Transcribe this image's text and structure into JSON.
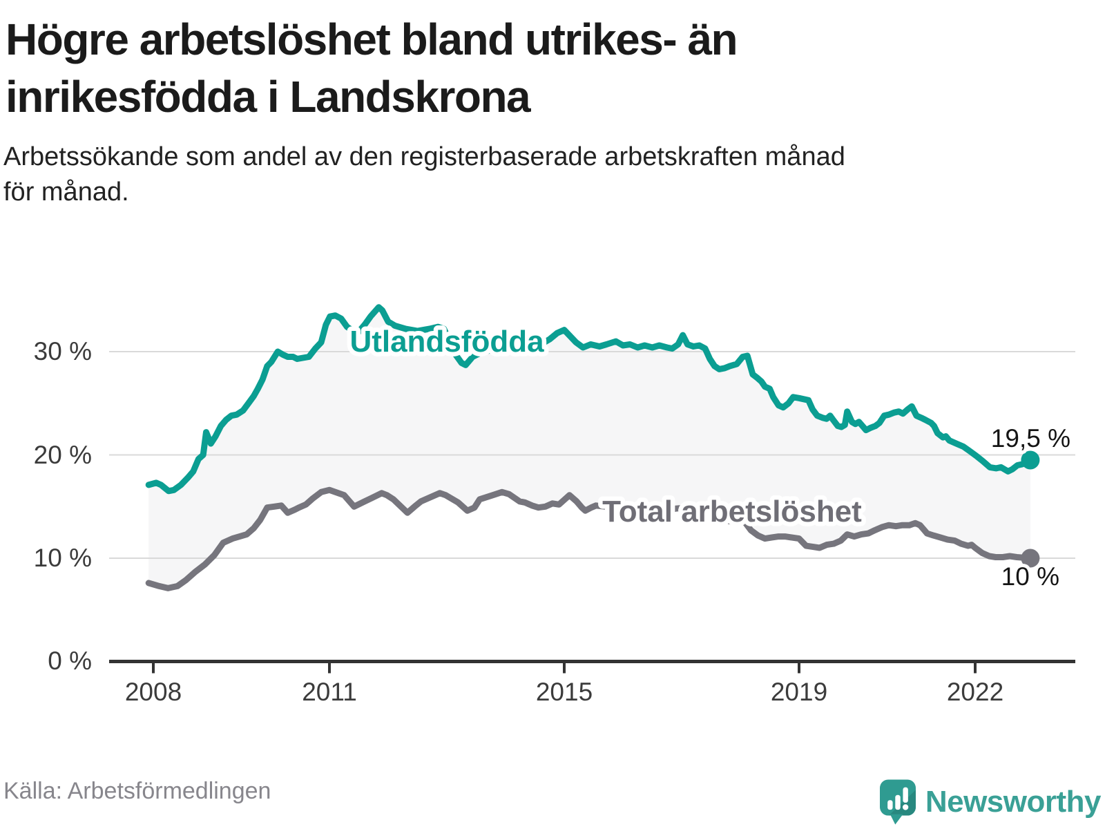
{
  "title": {
    "line1": "Högre arbetslöshet bland utrikes- än",
    "line2": "inrikesfödda i Landskrona"
  },
  "subtitle": {
    "line1": "Arbetssökande som andel av den registerbaserade arbetskraften månad",
    "line2": "för månad."
  },
  "footer": {
    "source": "Källa: Arbetsförmedlingen",
    "brand": "Newsworthy"
  },
  "colors": {
    "teal": "#0b9e92",
    "gray_line": "#76757d",
    "area_fill": "#f6f6f7",
    "gridline": "#d9d9d9",
    "axis": "#333333",
    "brand_teal": "#2f9b91"
  },
  "chart_data": {
    "type": "line",
    "title": "Högre arbetslöshet bland utrikes- än inrikesfödda i Landskrona",
    "xlabel": "",
    "ylabel": "Arbetssökande som andel av den registerbaserade arbetskraften",
    "unit": "%",
    "grid": "horizontal",
    "xlim": [
      2007.25,
      2023.7
    ],
    "ylim": [
      0,
      36
    ],
    "x_ticks": [
      {
        "value": 2008,
        "label": "2008"
      },
      {
        "value": 2011,
        "label": "2011"
      },
      {
        "value": 2015,
        "label": "2015"
      },
      {
        "value": 2019,
        "label": "2019"
      },
      {
        "value": 2022,
        "label": "2022"
      }
    ],
    "y_ticks": [
      {
        "value": 0,
        "label": "0 %"
      },
      {
        "value": 10,
        "label": "10 %"
      },
      {
        "value": 20,
        "label": "20 %"
      },
      {
        "value": 30,
        "label": "30 %"
      }
    ],
    "area_fill_between_series": true,
    "series": [
      {
        "name": "Utlandsfödda",
        "slug": "utlandsfodda",
        "color": "#0b9e92",
        "end_label": "19,5 %",
        "end_value": 19.5,
        "points": [
          [
            2007.92,
            17.1
          ],
          [
            2008.05,
            17.3
          ],
          [
            2008.13,
            17.1
          ],
          [
            2008.26,
            16.5
          ],
          [
            2008.35,
            16.6
          ],
          [
            2008.47,
            17.1
          ],
          [
            2008.59,
            17.8
          ],
          [
            2008.68,
            18.4
          ],
          [
            2008.77,
            19.6
          ],
          [
            2008.85,
            20.0
          ],
          [
            2008.9,
            22.2
          ],
          [
            2008.98,
            21.1
          ],
          [
            2009.06,
            21.8
          ],
          [
            2009.15,
            22.8
          ],
          [
            2009.24,
            23.4
          ],
          [
            2009.33,
            23.8
          ],
          [
            2009.42,
            23.9
          ],
          [
            2009.53,
            24.3
          ],
          [
            2009.62,
            25.0
          ],
          [
            2009.71,
            25.7
          ],
          [
            2009.78,
            26.4
          ],
          [
            2009.86,
            27.3
          ],
          [
            2009.94,
            28.6
          ],
          [
            2010.01,
            29.0
          ],
          [
            2010.12,
            30.0
          ],
          [
            2010.21,
            29.7
          ],
          [
            2010.29,
            29.5
          ],
          [
            2010.38,
            29.5
          ],
          [
            2010.45,
            29.3
          ],
          [
            2010.55,
            29.4
          ],
          [
            2010.65,
            29.5
          ],
          [
            2010.76,
            30.3
          ],
          [
            2010.86,
            30.9
          ],
          [
            2010.94,
            32.6
          ],
          [
            2011.01,
            33.4
          ],
          [
            2011.1,
            33.5
          ],
          [
            2011.2,
            33.2
          ],
          [
            2011.3,
            32.4
          ],
          [
            2011.38,
            32.1
          ],
          [
            2011.48,
            31.8
          ],
          [
            2011.6,
            32.6
          ],
          [
            2011.7,
            33.4
          ],
          [
            2011.84,
            34.3
          ],
          [
            2011.9,
            34.0
          ],
          [
            2012.0,
            32.9
          ],
          [
            2012.12,
            32.5
          ],
          [
            2012.3,
            32.2
          ],
          [
            2012.5,
            32.0
          ],
          [
            2012.7,
            32.2
          ],
          [
            2012.85,
            32.4
          ],
          [
            2012.95,
            32.2
          ],
          [
            2013.05,
            31.0
          ],
          [
            2013.15,
            29.7
          ],
          [
            2013.25,
            28.9
          ],
          [
            2013.32,
            28.7
          ],
          [
            2013.44,
            29.5
          ],
          [
            2013.58,
            29.9
          ],
          [
            2013.72,
            30.1
          ],
          [
            2013.86,
            30.3
          ],
          [
            2014.0,
            30.3
          ],
          [
            2014.15,
            30.1
          ],
          [
            2014.3,
            30.3
          ],
          [
            2014.45,
            30.4
          ],
          [
            2014.6,
            30.7
          ],
          [
            2014.75,
            31.2
          ],
          [
            2014.88,
            31.8
          ],
          [
            2015.0,
            32.1
          ],
          [
            2015.2,
            30.9
          ],
          [
            2015.32,
            30.4
          ],
          [
            2015.45,
            30.7
          ],
          [
            2015.6,
            30.5
          ],
          [
            2015.72,
            30.7
          ],
          [
            2015.88,
            31.0
          ],
          [
            2016.0,
            30.6
          ],
          [
            2016.12,
            30.7
          ],
          [
            2016.25,
            30.4
          ],
          [
            2016.37,
            30.6
          ],
          [
            2016.5,
            30.4
          ],
          [
            2016.62,
            30.6
          ],
          [
            2016.75,
            30.4
          ],
          [
            2016.84,
            30.3
          ],
          [
            2016.94,
            30.7
          ],
          [
            2017.02,
            31.6
          ],
          [
            2017.1,
            30.7
          ],
          [
            2017.2,
            30.5
          ],
          [
            2017.3,
            30.6
          ],
          [
            2017.4,
            30.3
          ],
          [
            2017.48,
            29.3
          ],
          [
            2017.56,
            28.6
          ],
          [
            2017.64,
            28.3
          ],
          [
            2017.73,
            28.4
          ],
          [
            2017.82,
            28.6
          ],
          [
            2017.94,
            28.8
          ],
          [
            2018.04,
            29.5
          ],
          [
            2018.12,
            29.6
          ],
          [
            2018.21,
            27.8
          ],
          [
            2018.28,
            27.5
          ],
          [
            2018.36,
            27.1
          ],
          [
            2018.42,
            26.6
          ],
          [
            2018.5,
            26.4
          ],
          [
            2018.56,
            25.6
          ],
          [
            2018.65,
            24.8
          ],
          [
            2018.73,
            24.6
          ],
          [
            2018.82,
            25.0
          ],
          [
            2018.9,
            25.6
          ],
          [
            2019.0,
            25.5
          ],
          [
            2019.08,
            25.4
          ],
          [
            2019.16,
            25.3
          ],
          [
            2019.23,
            24.4
          ],
          [
            2019.31,
            23.8
          ],
          [
            2019.4,
            23.6
          ],
          [
            2019.47,
            23.5
          ],
          [
            2019.53,
            23.8
          ],
          [
            2019.58,
            23.4
          ],
          [
            2019.66,
            22.8
          ],
          [
            2019.72,
            22.7
          ],
          [
            2019.78,
            22.9
          ],
          [
            2019.82,
            24.2
          ],
          [
            2019.9,
            23.2
          ],
          [
            2019.96,
            23.0
          ],
          [
            2020.02,
            23.2
          ],
          [
            2020.08,
            22.8
          ],
          [
            2020.14,
            22.4
          ],
          [
            2020.21,
            22.6
          ],
          [
            2020.3,
            22.8
          ],
          [
            2020.37,
            23.1
          ],
          [
            2020.45,
            23.8
          ],
          [
            2020.53,
            23.9
          ],
          [
            2020.62,
            24.1
          ],
          [
            2020.7,
            24.2
          ],
          [
            2020.77,
            24.0
          ],
          [
            2020.85,
            24.4
          ],
          [
            2020.92,
            24.7
          ],
          [
            2021.0,
            23.8
          ],
          [
            2021.08,
            23.6
          ],
          [
            2021.15,
            23.4
          ],
          [
            2021.25,
            23.1
          ],
          [
            2021.3,
            22.8
          ],
          [
            2021.36,
            22.1
          ],
          [
            2021.45,
            21.7
          ],
          [
            2021.5,
            21.8
          ],
          [
            2021.56,
            21.4
          ],
          [
            2021.68,
            21.1
          ],
          [
            2021.8,
            20.8
          ],
          [
            2021.9,
            20.4
          ],
          [
            2022.02,
            19.9
          ],
          [
            2022.13,
            19.4
          ],
          [
            2022.25,
            18.8
          ],
          [
            2022.36,
            18.7
          ],
          [
            2022.44,
            18.8
          ],
          [
            2022.5,
            18.6
          ],
          [
            2022.56,
            18.4
          ],
          [
            2022.63,
            18.6
          ],
          [
            2022.72,
            19.0
          ],
          [
            2022.8,
            19.1
          ],
          [
            2022.94,
            19.5
          ]
        ]
      },
      {
        "name": "Total arbetslöshet",
        "slug": "total-arbetsloshet",
        "color": "#76757d",
        "end_label": "10 %",
        "end_value": 10,
        "points": [
          [
            2007.92,
            7.6
          ],
          [
            2008.1,
            7.3
          ],
          [
            2008.25,
            7.1
          ],
          [
            2008.41,
            7.3
          ],
          [
            2008.56,
            7.9
          ],
          [
            2008.72,
            8.7
          ],
          [
            2008.88,
            9.4
          ],
          [
            2009.04,
            10.3
          ],
          [
            2009.19,
            11.5
          ],
          [
            2009.35,
            11.9
          ],
          [
            2009.47,
            12.1
          ],
          [
            2009.59,
            12.3
          ],
          [
            2009.71,
            12.9
          ],
          [
            2009.82,
            13.7
          ],
          [
            2009.94,
            14.9
          ],
          [
            2010.06,
            15.0
          ],
          [
            2010.18,
            15.1
          ],
          [
            2010.29,
            14.4
          ],
          [
            2010.41,
            14.7
          ],
          [
            2010.48,
            14.9
          ],
          [
            2010.6,
            15.2
          ],
          [
            2010.72,
            15.8
          ],
          [
            2010.86,
            16.4
          ],
          [
            2011.0,
            16.6
          ],
          [
            2011.25,
            16.1
          ],
          [
            2011.42,
            15.0
          ],
          [
            2011.6,
            15.5
          ],
          [
            2011.71,
            15.8
          ],
          [
            2011.89,
            16.3
          ],
          [
            2011.98,
            16.1
          ],
          [
            2012.09,
            15.7
          ],
          [
            2012.33,
            14.4
          ],
          [
            2012.45,
            15.0
          ],
          [
            2012.56,
            15.5
          ],
          [
            2012.88,
            16.3
          ],
          [
            2012.98,
            16.1
          ],
          [
            2013.19,
            15.4
          ],
          [
            2013.35,
            14.6
          ],
          [
            2013.47,
            14.9
          ],
          [
            2013.56,
            15.7
          ],
          [
            2013.78,
            16.1
          ],
          [
            2013.94,
            16.4
          ],
          [
            2014.06,
            16.2
          ],
          [
            2014.24,
            15.5
          ],
          [
            2014.33,
            15.4
          ],
          [
            2014.45,
            15.1
          ],
          [
            2014.56,
            14.9
          ],
          [
            2014.68,
            15.0
          ],
          [
            2014.8,
            15.3
          ],
          [
            2014.91,
            15.2
          ],
          [
            2015.01,
            15.7
          ],
          [
            2015.09,
            16.1
          ],
          [
            2015.21,
            15.5
          ],
          [
            2015.3,
            14.9
          ],
          [
            2015.36,
            14.6
          ],
          [
            2015.46,
            14.9
          ],
          [
            2015.54,
            15.1
          ],
          [
            2015.7,
            15.0
          ],
          [
            2015.9,
            14.8
          ],
          [
            2016.1,
            14.7
          ],
          [
            2016.3,
            14.9
          ],
          [
            2016.5,
            14.7
          ],
          [
            2016.7,
            14.6
          ],
          [
            2016.9,
            14.8
          ],
          [
            2017.1,
            14.9
          ],
          [
            2017.3,
            14.5
          ],
          [
            2017.5,
            14.2
          ],
          [
            2017.7,
            13.7
          ],
          [
            2017.9,
            13.5
          ],
          [
            2018.05,
            13.7
          ],
          [
            2018.18,
            12.7
          ],
          [
            2018.3,
            12.2
          ],
          [
            2018.42,
            11.9
          ],
          [
            2018.53,
            12.0
          ],
          [
            2018.65,
            12.1
          ],
          [
            2018.76,
            12.1
          ],
          [
            2018.88,
            12.0
          ],
          [
            2019.0,
            11.9
          ],
          [
            2019.12,
            11.2
          ],
          [
            2019.24,
            11.1
          ],
          [
            2019.35,
            11.0
          ],
          [
            2019.47,
            11.3
          ],
          [
            2019.59,
            11.4
          ],
          [
            2019.71,
            11.7
          ],
          [
            2019.82,
            12.3
          ],
          [
            2019.94,
            12.1
          ],
          [
            2020.06,
            12.3
          ],
          [
            2020.18,
            12.4
          ],
          [
            2020.29,
            12.7
          ],
          [
            2020.41,
            13.0
          ],
          [
            2020.53,
            13.2
          ],
          [
            2020.65,
            13.1
          ],
          [
            2020.76,
            13.2
          ],
          [
            2020.88,
            13.2
          ],
          [
            2020.98,
            13.4
          ],
          [
            2021.06,
            13.2
          ],
          [
            2021.12,
            12.8
          ],
          [
            2021.18,
            12.4
          ],
          [
            2021.29,
            12.2
          ],
          [
            2021.41,
            12.0
          ],
          [
            2021.53,
            11.8
          ],
          [
            2021.65,
            11.7
          ],
          [
            2021.76,
            11.4
          ],
          [
            2021.88,
            11.2
          ],
          [
            2021.94,
            11.3
          ],
          [
            2022.0,
            11.0
          ],
          [
            2022.12,
            10.5
          ],
          [
            2022.24,
            10.2
          ],
          [
            2022.35,
            10.1
          ],
          [
            2022.47,
            10.1
          ],
          [
            2022.59,
            10.2
          ],
          [
            2022.71,
            10.1
          ],
          [
            2022.94,
            10.0
          ]
        ]
      }
    ]
  }
}
